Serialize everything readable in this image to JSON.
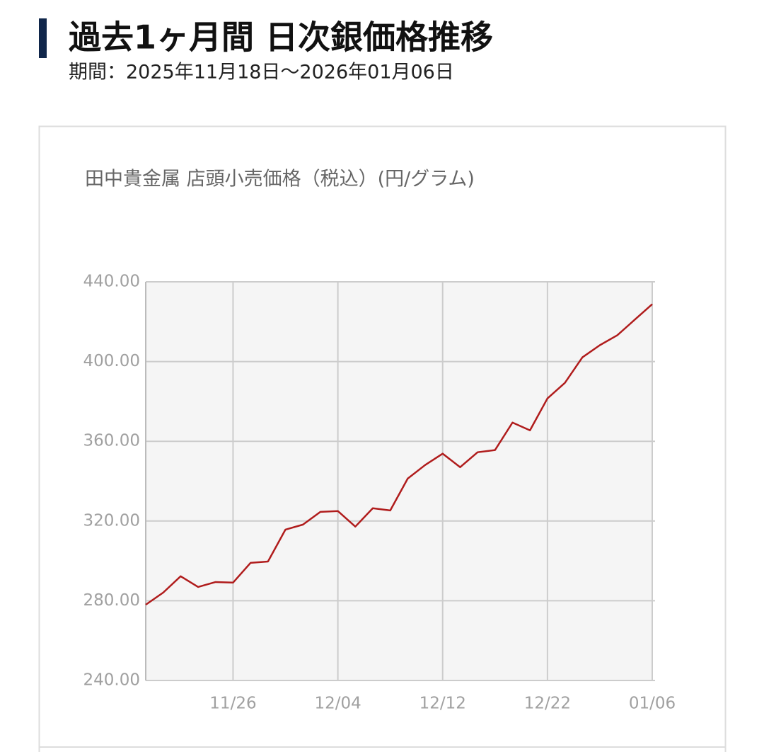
{
  "header": {
    "title": "過去1ヶ月間 日次銀価格推移",
    "subtitle": "期間：2025年11月18日〜2026年01月06日"
  },
  "chart_data": {
    "type": "line",
    "title": "田中貴金属 店頭小売価格（税込）(円/グラム)",
    "categories": [
      null,
      null,
      null,
      null,
      null,
      "11/26",
      null,
      null,
      null,
      null,
      null,
      "12/04",
      null,
      null,
      null,
      null,
      null,
      "12/12",
      null,
      null,
      null,
      null,
      null,
      "12/22",
      null,
      null,
      null,
      null,
      null,
      "01/06"
    ],
    "series": [
      {
        "color": "#b01c1c",
        "values": [
          278.0,
          284.1,
          292.3,
          286.9,
          289.4,
          289.1,
          299.0,
          299.7,
          315.7,
          318.2,
          324.6,
          325.0,
          317.2,
          326.4,
          325.3,
          341.3,
          348.1,
          353.8,
          347.0,
          354.5,
          355.6,
          369.4,
          365.5,
          381.5,
          389.3,
          402.1,
          408.2,
          413.2,
          421.0,
          428.8
        ]
      }
    ],
    "ylim": [
      240,
      440
    ],
    "yticks": [
      {
        "value": 240,
        "label": "240.00"
      },
      {
        "value": 280,
        "label": "280.00"
      },
      {
        "value": 320,
        "label": "320.00"
      },
      {
        "value": 360,
        "label": "360.00"
      },
      {
        "value": 400,
        "label": "400.00"
      },
      {
        "value": 440,
        "label": "440.00"
      }
    ],
    "grid": true
  }
}
